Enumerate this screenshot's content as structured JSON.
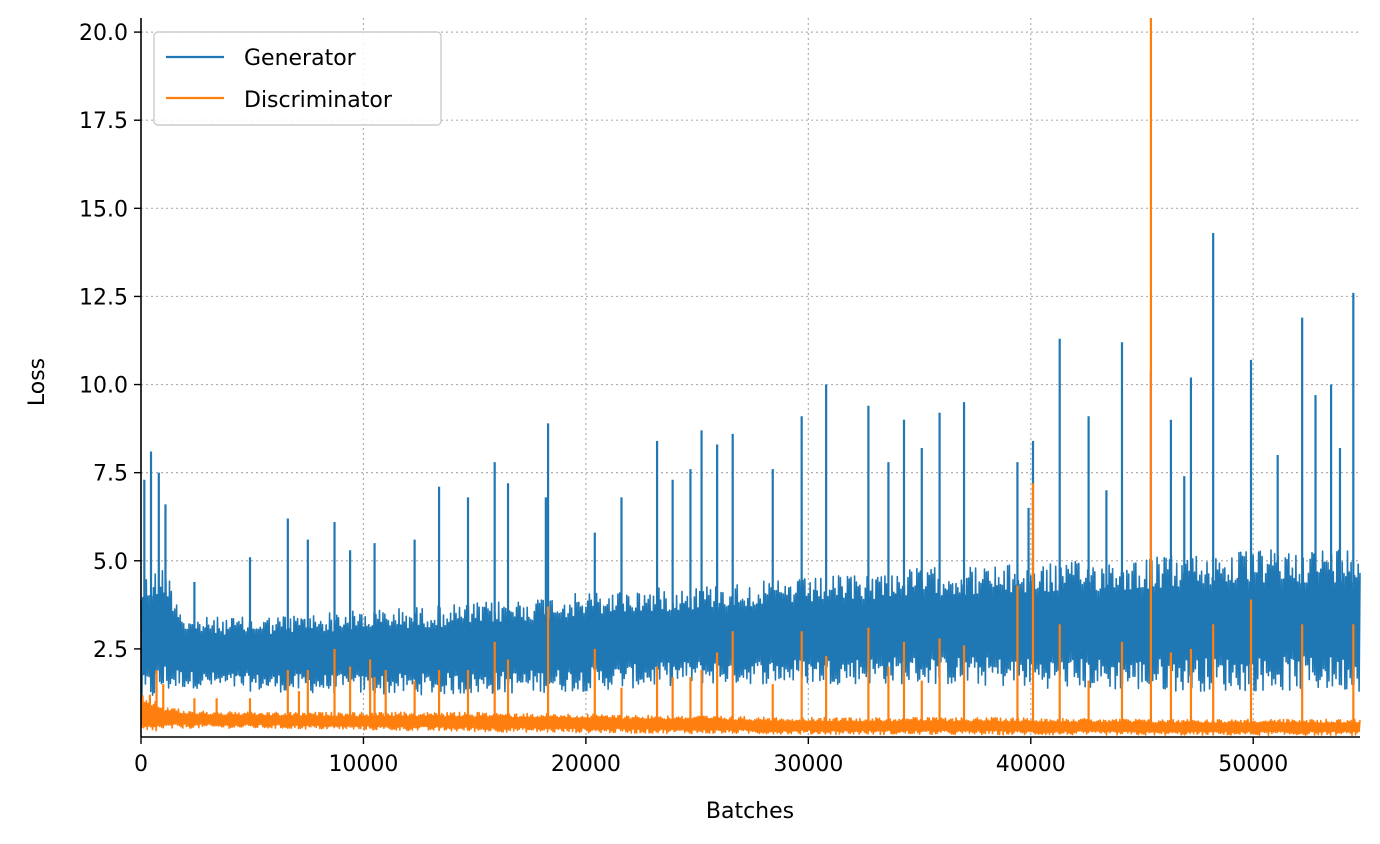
{
  "chart_data": {
    "type": "line",
    "xlabel": "Batches",
    "ylabel": "Loss",
    "xlim": [
      0,
      54800
    ],
    "ylim": [
      0,
      20.4
    ],
    "xticks": [
      0,
      10000,
      20000,
      30000,
      40000,
      50000
    ],
    "xtick_labels": [
      "0",
      "10000",
      "20000",
      "30000",
      "40000",
      "50000"
    ],
    "yticks": [
      2.5,
      5.0,
      7.5,
      10.0,
      12.5,
      15.0,
      17.5,
      20.0
    ],
    "ytick_labels": [
      "2.5",
      "5.0",
      "7.5",
      "10.0",
      "12.5",
      "15.0",
      "17.5",
      "20.0"
    ],
    "grid": true,
    "legend_position": "top-left",
    "series": [
      {
        "name": "Generator",
        "color": "#1f77b4",
        "band": {
          "x": [
            0,
            1000,
            2000,
            5000,
            10000,
            15000,
            20000,
            25000,
            30000,
            35000,
            40000,
            45000,
            50000,
            54800
          ],
          "lower": [
            0.8,
            1.2,
            1.4,
            1.3,
            1.2,
            1.2,
            1.3,
            1.5,
            1.5,
            1.5,
            1.4,
            1.3,
            1.3,
            1.3
          ],
          "upper": [
            4.5,
            5.0,
            3.4,
            3.4,
            3.6,
            3.8,
            4.1,
            4.3,
            4.5,
            4.8,
            4.9,
            5.1,
            5.3,
            5.4
          ]
        },
        "spikes": [
          [
            150,
            7.3
          ],
          [
            450,
            8.1
          ],
          [
            800,
            7.5
          ],
          [
            1100,
            6.6
          ],
          [
            2400,
            4.4
          ],
          [
            4900,
            5.1
          ],
          [
            6600,
            6.2
          ],
          [
            7500,
            5.6
          ],
          [
            8700,
            6.1
          ],
          [
            9400,
            5.3
          ],
          [
            10500,
            5.5
          ],
          [
            12300,
            5.6
          ],
          [
            13400,
            7.1
          ],
          [
            14700,
            6.8
          ],
          [
            15900,
            7.8
          ],
          [
            16500,
            7.2
          ],
          [
            18200,
            6.8
          ],
          [
            18300,
            8.9
          ],
          [
            20400,
            5.8
          ],
          [
            21600,
            6.8
          ],
          [
            23200,
            8.4
          ],
          [
            23900,
            7.3
          ],
          [
            24700,
            7.6
          ],
          [
            25200,
            8.7
          ],
          [
            25900,
            8.3
          ],
          [
            26600,
            8.6
          ],
          [
            28400,
            7.6
          ],
          [
            29700,
            9.1
          ],
          [
            30800,
            10.0
          ],
          [
            32700,
            9.4
          ],
          [
            33600,
            7.8
          ],
          [
            34300,
            9.0
          ],
          [
            35100,
            8.2
          ],
          [
            35900,
            9.2
          ],
          [
            37000,
            9.5
          ],
          [
            39400,
            7.8
          ],
          [
            39900,
            6.5
          ],
          [
            40100,
            8.4
          ],
          [
            41300,
            11.3
          ],
          [
            42600,
            9.1
          ],
          [
            43400,
            7.0
          ],
          [
            44100,
            11.2
          ],
          [
            45400,
            10.4
          ],
          [
            46300,
            9.0
          ],
          [
            46900,
            7.4
          ],
          [
            47200,
            10.2
          ],
          [
            48200,
            14.3
          ],
          [
            49900,
            10.7
          ],
          [
            51100,
            8.0
          ],
          [
            52200,
            11.9
          ],
          [
            52800,
            9.7
          ],
          [
            53500,
            10.0
          ],
          [
            53900,
            8.2
          ],
          [
            54500,
            12.6
          ]
        ]
      },
      {
        "name": "Discriminator",
        "color": "#ff7f0e",
        "band": {
          "x": [
            0,
            1000,
            2000,
            5000,
            10000,
            15000,
            20000,
            25000,
            30000,
            35000,
            40000,
            45000,
            50000,
            54800
          ],
          "lower": [
            0.05,
            0.2,
            0.25,
            0.25,
            0.2,
            0.15,
            0.12,
            0.1,
            0.08,
            0.07,
            0.06,
            0.05,
            0.05,
            0.05
          ],
          "upper": [
            1.2,
            0.9,
            0.75,
            0.7,
            0.7,
            0.7,
            0.65,
            0.6,
            0.55,
            0.55,
            0.55,
            0.5,
            0.5,
            0.5
          ]
        },
        "spikes": [
          [
            400,
            1.2
          ],
          [
            700,
            1.9
          ],
          [
            1000,
            1.5
          ],
          [
            2400,
            1.1
          ],
          [
            3400,
            1.1
          ],
          [
            4900,
            1.1
          ],
          [
            6600,
            1.9
          ],
          [
            7100,
            1.3
          ],
          [
            7500,
            1.9
          ],
          [
            8700,
            2.5
          ],
          [
            9400,
            2.0
          ],
          [
            10300,
            2.2
          ],
          [
            10500,
            1.7
          ],
          [
            11000,
            1.9
          ],
          [
            12300,
            1.6
          ],
          [
            13400,
            1.9
          ],
          [
            14700,
            1.9
          ],
          [
            15900,
            2.7
          ],
          [
            16500,
            2.2
          ],
          [
            18300,
            3.7
          ],
          [
            20400,
            2.5
          ],
          [
            21600,
            1.4
          ],
          [
            23200,
            2.0
          ],
          [
            23900,
            1.7
          ],
          [
            24700,
            1.7
          ],
          [
            25200,
            1.9
          ],
          [
            25900,
            2.4
          ],
          [
            26600,
            3.0
          ],
          [
            28400,
            1.5
          ],
          [
            29700,
            3.0
          ],
          [
            30800,
            2.3
          ],
          [
            32700,
            3.1
          ],
          [
            33600,
            2.0
          ],
          [
            34300,
            2.7
          ],
          [
            35100,
            1.6
          ],
          [
            35900,
            2.8
          ],
          [
            37000,
            2.6
          ],
          [
            39400,
            4.3
          ],
          [
            40100,
            7.2
          ],
          [
            41300,
            3.2
          ],
          [
            42600,
            1.6
          ],
          [
            44100,
            2.7
          ],
          [
            45400,
            20.4
          ],
          [
            46300,
            2.4
          ],
          [
            47200,
            2.5
          ],
          [
            48200,
            3.2
          ],
          [
            49900,
            3.9
          ],
          [
            52200,
            3.2
          ],
          [
            54500,
            3.2
          ]
        ]
      }
    ]
  }
}
